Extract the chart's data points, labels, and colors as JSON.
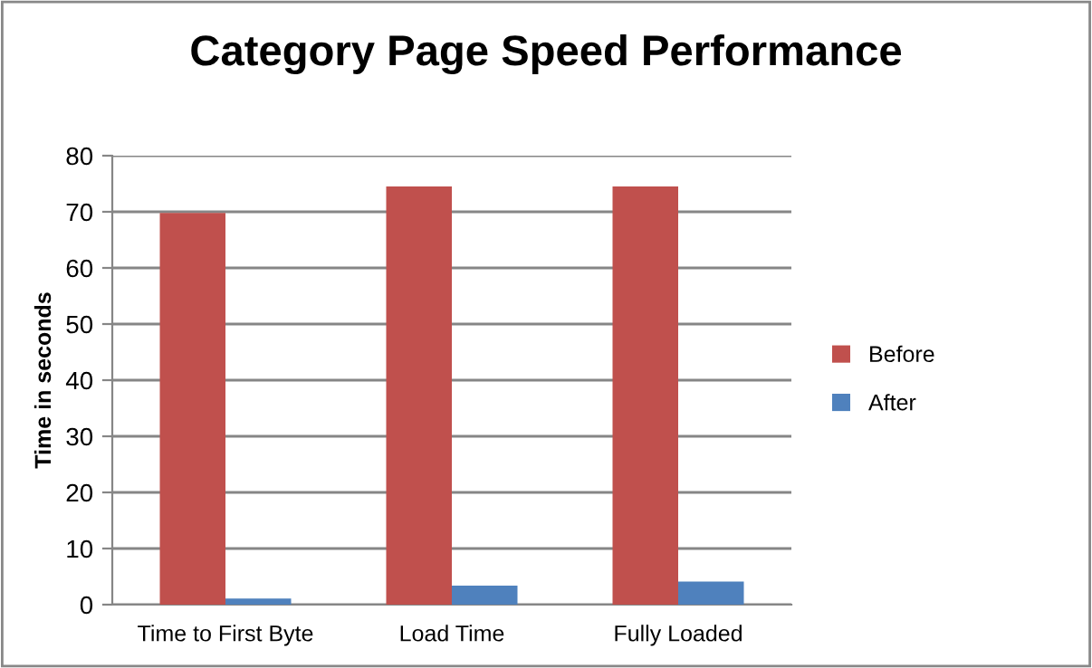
{
  "chart_data": {
    "type": "bar",
    "title": "Category Page Speed Performance",
    "ylabel": "Time in seconds",
    "categories": [
      "Time to First Byte",
      "Load Time",
      "Fully Loaded"
    ],
    "series": [
      {
        "name": "Before",
        "color": "#c0504d",
        "values": [
          69.8,
          74.5,
          74.5
        ]
      },
      {
        "name": "After",
        "color": "#4f81bd",
        "values": [
          1.1,
          3.4,
          4.1
        ]
      }
    ],
    "ylim": [
      0,
      80
    ],
    "yticks": [
      0,
      10,
      20,
      30,
      40,
      50,
      60,
      70,
      80
    ],
    "grid": "y",
    "legend": "right"
  }
}
